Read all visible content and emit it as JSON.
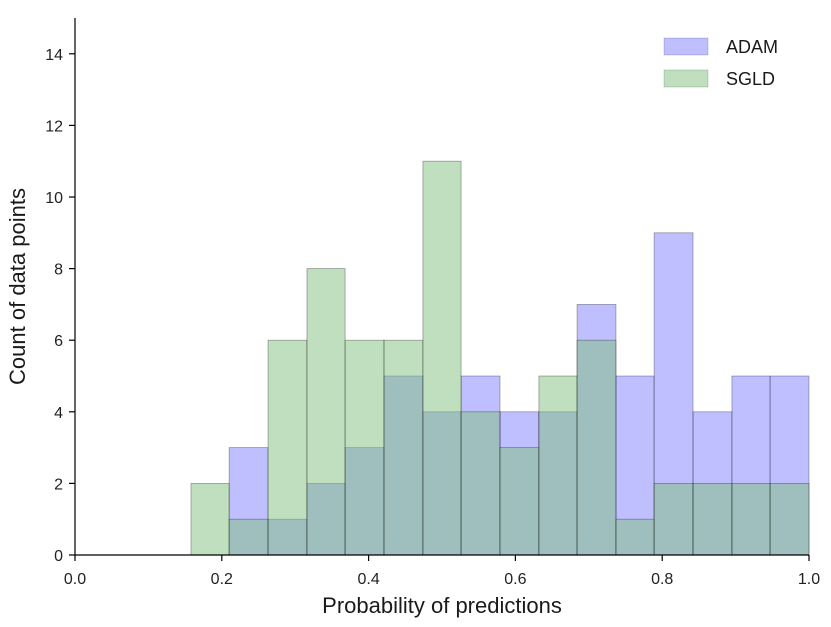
{
  "chart_data": {
    "type": "bar",
    "subtype": "overlaid-histogram",
    "xlabel": "Probability of predictions",
    "ylabel": "Count of data points",
    "xlim": [
      0.0,
      1.0
    ],
    "ylim": [
      0,
      15
    ],
    "xticks": [
      "0.0",
      "0.2",
      "0.4",
      "0.6",
      "0.8",
      "1.0"
    ],
    "yticks": [
      "0",
      "2",
      "4",
      "6",
      "8",
      "10",
      "12",
      "14"
    ],
    "bin_edges": [
      0.158,
      0.21,
      0.263,
      0.316,
      0.368,
      0.421,
      0.474,
      0.526,
      0.579,
      0.632,
      0.684,
      0.737,
      0.789,
      0.842,
      0.895,
      0.947,
      1.0
    ],
    "legend_position": "top-right",
    "grid": false,
    "series": [
      {
        "name": "ADAM",
        "color": "#7f7fff",
        "values": [
          0,
          3,
          1,
          2,
          3,
          5,
          4,
          5,
          4,
          4,
          7,
          5,
          9,
          4,
          5,
          5
        ]
      },
      {
        "name": "SGLD",
        "color": "#7fbf7f",
        "values": [
          2,
          1,
          6,
          8,
          6,
          6,
          11,
          4,
          3,
          5,
          6,
          1,
          2,
          2,
          2,
          2
        ]
      }
    ],
    "overlap_color": "#3f7f7f"
  }
}
